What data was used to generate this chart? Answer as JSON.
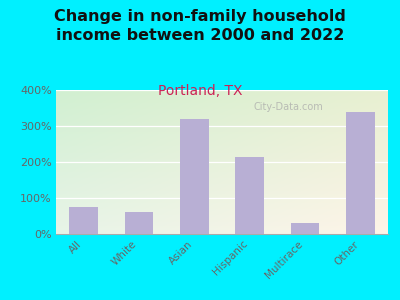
{
  "title": "Change in non-family household\nincome between 2000 and 2022",
  "subtitle": "Portland, TX",
  "categories": [
    "All",
    "White",
    "Asian",
    "Hispanic",
    "Multirace",
    "Other"
  ],
  "values": [
    75,
    62,
    320,
    215,
    30,
    340
  ],
  "bar_color": "#b8afd4",
  "background_outer": "#00f0ff",
  "background_inner_left": "#c8e8c0",
  "background_inner_right": "#f0f8e8",
  "title_fontsize": 11.5,
  "title_color": "#111111",
  "subtitle_fontsize": 10,
  "subtitle_color": "#cc2255",
  "tick_color": "#666666",
  "ylim": [
    0,
    400
  ],
  "yticks": [
    0,
    100,
    200,
    300,
    400
  ],
  "watermark": "City-Data.com"
}
